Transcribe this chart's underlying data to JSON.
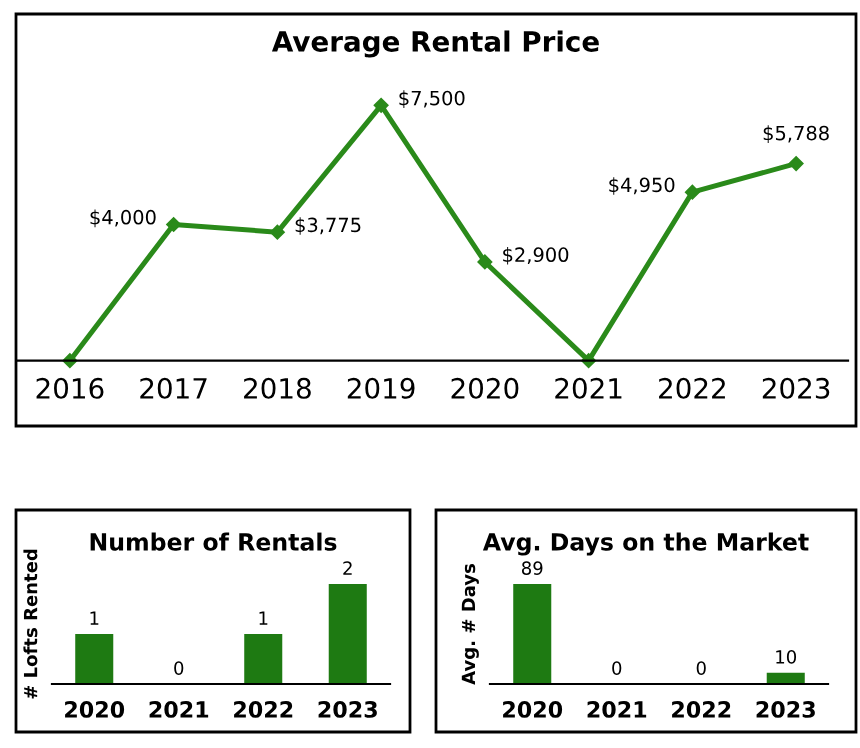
{
  "chart_data": [
    {
      "type": "line",
      "title": "Average Rental Price",
      "categories": [
        "2016",
        "2017",
        "2018",
        "2019",
        "2020",
        "2021",
        "2022",
        "2023"
      ],
      "values": [
        0,
        4000,
        3775,
        7500,
        2900,
        0,
        4950,
        5788
      ],
      "value_labels": [
        null,
        "$4,000",
        "$3,775",
        "$7,500",
        "$2,900",
        null,
        "$4,950",
        "$5,788"
      ],
      "color": "#2a8a1a",
      "marker": "diamond",
      "tick_labels": "x"
    },
    {
      "type": "bar",
      "title": "Number of Rentals",
      "ylabel": "# Lofts Rented",
      "categories": [
        "2020",
        "2021",
        "2022",
        "2023"
      ],
      "values": [
        1,
        0,
        1,
        2
      ],
      "color": "#1e7a12",
      "data_labels": true,
      "tick_labels": "x"
    },
    {
      "type": "bar",
      "title": "Avg. Days on the Market",
      "ylabel": "Avg. # Days",
      "categories": [
        "2020",
        "2021",
        "2022",
        "2023"
      ],
      "values": [
        89,
        0,
        0,
        10
      ],
      "color": "#1e7a12",
      "data_labels": true,
      "tick_labels": "x"
    }
  ]
}
